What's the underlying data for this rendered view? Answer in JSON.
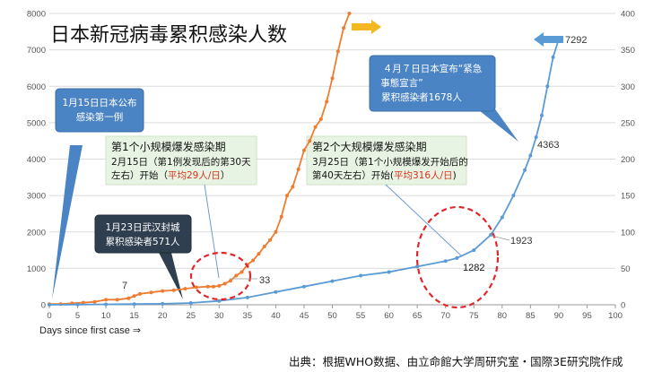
{
  "chart_data": {
    "type": "line",
    "title": "日本新冠病毒累积感染人数",
    "xlabel": "Days since first case ⇒",
    "xlim": [
      0,
      100
    ],
    "xticks": [
      0,
      5,
      10,
      15,
      20,
      25,
      30,
      35,
      40,
      45,
      50,
      55,
      60,
      65,
      70,
      75,
      80,
      85,
      90,
      95,
      100
    ],
    "ylim_left": [
      0,
      8000
    ],
    "yticks_left": [
      0,
      1000,
      2000,
      3000,
      4000,
      5000,
      6000,
      7000,
      8000
    ],
    "ylim_right": [
      0,
      400
    ],
    "yticks_right": [
      0,
      50,
      100,
      150,
      200,
      250,
      300,
      350,
      400
    ],
    "grid": true,
    "series": [
      {
        "axis": "right",
        "color": "#ee7d31",
        "x": [
          0,
          2,
          4,
          6,
          8,
          10,
          12,
          14,
          15,
          16,
          18,
          20,
          22,
          24,
          26,
          28,
          29,
          30,
          31,
          32,
          33,
          34,
          35,
          36,
          37,
          38,
          39,
          40,
          41,
          42,
          43,
          44,
          45,
          46,
          47,
          48,
          49,
          50,
          51,
          52,
          53
        ],
        "values": [
          1,
          1,
          2,
          3,
          4,
          7,
          7,
          9,
          12,
          15,
          17,
          19,
          20,
          22,
          24,
          25,
          25,
          26,
          29,
          33,
          40,
          45,
          55,
          61,
          70,
          80,
          89,
          100,
          121,
          150,
          162,
          186,
          212,
          225,
          244,
          255,
          279,
          311,
          348,
          380,
          400
        ]
      },
      {
        "axis": "left",
        "color": "#5b9bd5",
        "x": [
          0,
          5,
          10,
          15,
          20,
          25,
          30,
          35,
          40,
          45,
          50,
          55,
          60,
          65,
          70,
          72,
          75,
          78,
          80,
          82,
          84,
          85,
          86,
          87,
          88,
          89,
          90
        ],
        "values": [
          1,
          5,
          12,
          20,
          28,
          50,
          106,
          200,
          350,
          500,
          650,
          800,
          900,
          1050,
          1200,
          1282,
          1500,
          1923,
          2400,
          3000,
          3700,
          4100,
          4600,
          5200,
          6000,
          6800,
          7292
        ]
      }
    ],
    "annotations": {
      "arrow_labels": [
        "7",
        "33",
        "1282",
        "1923",
        "4363",
        "7292"
      ],
      "box1": [
        "1月15日日本公布",
        "感染第一例"
      ],
      "box2": [
        "1月23日武汉封城",
        "累积感染者571人"
      ],
      "box3": [
        "４月７日日本宣布“紧急",
        "事態宣言”",
        "累积感染者1678人"
      ],
      "green1": [
        "第1个小规模爆发感染期",
        "2月15日（第1例发现后的第30天",
        "左右）开始（平均29人/日）"
      ],
      "green2": [
        "第2个大规模爆发感染期",
        "3月25日（第1个小规模爆发开始后的",
        "第40天左右）开始(平均316人/日)"
      ],
      "source": "出典：根据WHO数据、由立命館大学周研究室・国際3E研究院作成"
    }
  }
}
